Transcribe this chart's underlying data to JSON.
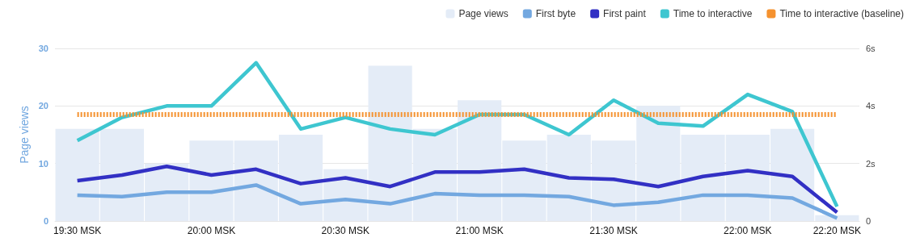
{
  "chart_data": {
    "type": "bar",
    "ylabel": "Page views",
    "categories": [
      "19:30 MSK",
      null,
      null,
      "20:00 MSK",
      null,
      null,
      "20:30 MSK",
      null,
      null,
      "21:00 MSK",
      null,
      null,
      "21:30 MSK",
      null,
      null,
      "22:00 MSK",
      null,
      "22:20 MSK"
    ],
    "series": [
      {
        "name": "Page views",
        "color": "#e4ecf7",
        "values": [
          16,
          16,
          10,
          14,
          14,
          15,
          9,
          27,
          16,
          21,
          14,
          15,
          14,
          20,
          15,
          15,
          16,
          1
        ]
      },
      {
        "name": "First byte",
        "type": "line",
        "axis": "y2",
        "color": "#73a8e0",
        "values": [
          0.9,
          0.85,
          1.0,
          1.0,
          1.25,
          0.6,
          0.75,
          0.6,
          0.95,
          0.9,
          0.9,
          0.85,
          0.55,
          0.65,
          0.9,
          0.9,
          0.8,
          0.1
        ]
      },
      {
        "name": "First paint",
        "type": "line",
        "axis": "y2",
        "color": "#3230c4",
        "values": [
          1.4,
          1.6,
          1.9,
          1.6,
          1.8,
          1.3,
          1.5,
          1.2,
          1.7,
          1.7,
          1.8,
          1.5,
          1.45,
          1.2,
          1.55,
          1.75,
          1.55,
          0.3
        ]
      },
      {
        "name": "Time to interactive",
        "type": "line",
        "axis": "y2",
        "color": "#3ec6d0",
        "values": [
          2.8,
          3.6,
          4.0,
          4.0,
          5.5,
          3.2,
          3.6,
          3.2,
          3.0,
          3.7,
          3.7,
          3.0,
          4.2,
          3.4,
          3.3,
          4.4,
          3.8,
          0.5
        ]
      },
      {
        "name": "Time to interactive (baseline)",
        "type": "line",
        "axis": "y2",
        "color": "#f5922f",
        "line_style": "dotted",
        "values": [
          3.7,
          3.7,
          3.7,
          3.7,
          3.7,
          3.7,
          3.7,
          3.7,
          3.7,
          3.7,
          3.7,
          3.7,
          3.7,
          3.7,
          3.7,
          3.7,
          3.7,
          3.7
        ]
      }
    ],
    "ylim": [
      0,
      30
    ],
    "yticks": [
      0,
      10,
      20,
      30
    ],
    "y2lim": [
      0,
      6
    ],
    "y2ticks": [
      0,
      {
        "value": 2,
        "label": "2s"
      },
      {
        "value": 4,
        "label": "4s"
      },
      {
        "value": 6,
        "label": "6s"
      }
    ],
    "grid": "y",
    "legend": "top right",
    "marker": "none"
  }
}
